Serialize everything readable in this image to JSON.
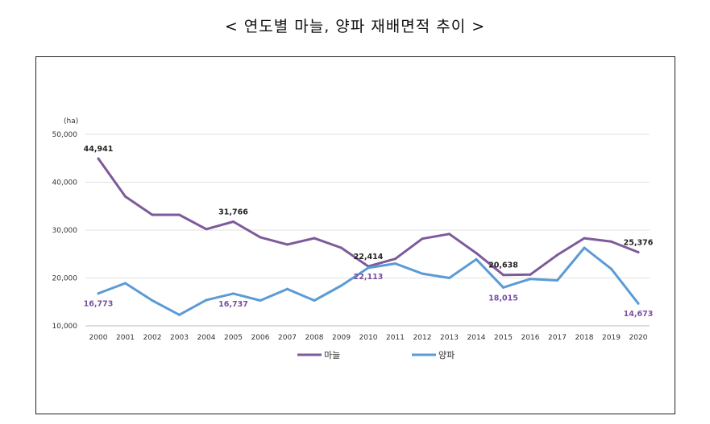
{
  "title": "< 연도별 마늘, 양파 재배면적 추이 >",
  "chart_data": {
    "type": "line",
    "title": "< 연도별 마늘, 양파 재배면적 추이 >",
    "unit": "(ha)",
    "xlabel": "",
    "ylabel": "",
    "ylim": [
      10000,
      50000
    ],
    "yticks": [
      10000,
      20000,
      30000,
      40000,
      50000
    ],
    "ytick_labels": [
      "10,000",
      "20,000",
      "30,000",
      "40,000",
      "50,000"
    ],
    "grid": true,
    "legend_position": "bottom",
    "categories": [
      "2000",
      "2001",
      "2002",
      "2003",
      "2004",
      "2005",
      "2006",
      "2007",
      "2008",
      "2009",
      "2010",
      "2011",
      "2012",
      "2013",
      "2014",
      "2015",
      "2016",
      "2017",
      "2018",
      "2019",
      "2020"
    ],
    "series": [
      {
        "name": "마늘",
        "color": "#7f5a9a",
        "values": [
          44941,
          37000,
          33200,
          33200,
          30200,
          31766,
          28500,
          27000,
          28300,
          26300,
          22414,
          24000,
          28200,
          29200,
          25200,
          20638,
          20700,
          24800,
          28300,
          27600,
          25376
        ]
      },
      {
        "name": "양파",
        "color": "#5b9bd5",
        "values": [
          16773,
          18900,
          15300,
          12300,
          15400,
          16737,
          15300,
          17700,
          15300,
          18400,
          22113,
          23000,
          20900,
          20000,
          23900,
          18015,
          19800,
          19500,
          26300,
          21900,
          14673
        ]
      }
    ],
    "annotations": [
      {
        "series": 0,
        "index": 0,
        "text": "44,941",
        "style": "dark"
      },
      {
        "series": 0,
        "index": 5,
        "text": "31,766",
        "style": "dark"
      },
      {
        "series": 0,
        "index": 10,
        "text": "22,414",
        "style": "dark"
      },
      {
        "series": 0,
        "index": 15,
        "text": "20,638",
        "style": "dark"
      },
      {
        "series": 0,
        "index": 20,
        "text": "25,376",
        "style": "dark"
      },
      {
        "series": 1,
        "index": 0,
        "text": "16,773",
        "style": "purple"
      },
      {
        "series": 1,
        "index": 5,
        "text": "16,737",
        "style": "purple"
      },
      {
        "series": 1,
        "index": 10,
        "text": "22,113",
        "style": "purple"
      },
      {
        "series": 1,
        "index": 15,
        "text": "18,015",
        "style": "purple"
      },
      {
        "series": 1,
        "index": 20,
        "text": "14,673",
        "style": "purple"
      }
    ]
  }
}
